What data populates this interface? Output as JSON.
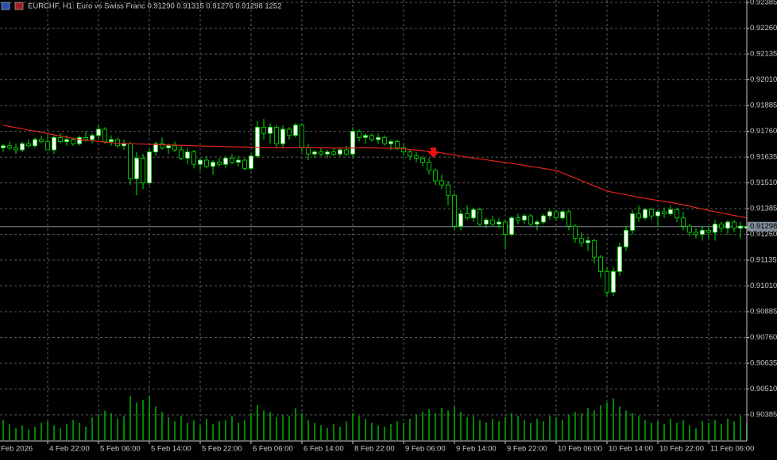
{
  "chart_data": {
    "type": "candlestick",
    "header": "EURCHF, H1:  Euro vs Swiss Franc  0.91290 0.91315 0.91276 0.91298  1252",
    "ylim": [
      0.90262,
      0.92397
    ],
    "yticks": [
      0.92385,
      {
        "value": 0.9226,
        "label": "0.92260"
      },
      0.92135,
      {
        "value": 0.9201,
        "label": "0.92010"
      },
      0.91885,
      {
        "value": 0.9176,
        "label": "0.91760"
      },
      0.91635,
      {
        "value": 0.9151,
        "label": "0.91510"
      },
      0.91385,
      {
        "value": 0.9126,
        "label": "0.91260"
      },
      0.91135,
      {
        "value": 0.9101,
        "label": "0.91010"
      },
      0.90885,
      {
        "value": 0.9076,
        "label": "0.90760"
      },
      0.90635,
      {
        "value": 0.9051,
        "label": "0.90510"
      },
      0.90385
    ],
    "grid": true,
    "colors": {
      "up": "#ffffff",
      "down": "#000000",
      "wick": "#00e600",
      "price_line": "#7f8c99"
    },
    "xlabels": [
      "Feb 2026",
      "4 Feb 22:00",
      "5 Feb 06:00",
      "5 Feb 14:00",
      "5 Feb 22:00",
      "6 Feb 06:00",
      "6 Feb 14:00",
      "8 Feb 22:00",
      "9 Feb 06:00",
      "9 Feb 14:00",
      "9 Feb 22:00",
      "10 Feb 06:00",
      "10 Feb 14:00",
      "10 Feb 22:00",
      "11 Feb 06:00"
    ],
    "ohlc": [
      [
        0.9168,
        0.917,
        0.9166,
        0.9169
      ],
      [
        0.9169,
        0.9171,
        0.9167,
        0.9168
      ],
      [
        0.9168,
        0.917,
        0.9165,
        0.9167
      ],
      [
        0.9167,
        0.9171,
        0.9166,
        0.917
      ],
      [
        0.917,
        0.9172,
        0.9168,
        0.9169
      ],
      [
        0.9169,
        0.9173,
        0.9168,
        0.9172
      ],
      [
        0.9172,
        0.9174,
        0.917,
        0.9171
      ],
      [
        0.9171,
        0.9175,
        0.9169,
        0.9167
      ],
      [
        0.9167,
        0.9174,
        0.9165,
        0.9173
      ],
      [
        0.9173,
        0.9175,
        0.917,
        0.9171
      ],
      [
        0.9171,
        0.9174,
        0.9169,
        0.9172
      ],
      [
        0.9172,
        0.9173,
        0.9169,
        0.917
      ],
      [
        0.917,
        0.9174,
        0.9169,
        0.9173
      ],
      [
        0.9173,
        0.9176,
        0.9171,
        0.9172
      ],
      [
        0.9172,
        0.9175,
        0.917,
        0.9174
      ],
      [
        0.9174,
        0.9179,
        0.9172,
        0.9177
      ],
      [
        0.9177,
        0.9178,
        0.917,
        0.9171
      ],
      [
        0.9171,
        0.9174,
        0.9169,
        0.9172
      ],
      [
        0.9172,
        0.9173,
        0.9168,
        0.9169
      ],
      [
        0.9169,
        0.9172,
        0.9167,
        0.917
      ],
      [
        0.917,
        0.9171,
        0.915,
        0.9153
      ],
      [
        0.9153,
        0.9166,
        0.9145,
        0.9163
      ],
      [
        0.9163,
        0.9165,
        0.9148,
        0.9151
      ],
      [
        0.9151,
        0.9168,
        0.915,
        0.9166
      ],
      [
        0.9166,
        0.9171,
        0.9164,
        0.917
      ],
      [
        0.917,
        0.9173,
        0.9167,
        0.9168
      ],
      [
        0.9168,
        0.917,
        0.9165,
        0.9169
      ],
      [
        0.9169,
        0.9171,
        0.9166,
        0.9167
      ],
      [
        0.9167,
        0.9169,
        0.9162,
        0.9163
      ],
      [
        0.9163,
        0.9168,
        0.916,
        0.9166
      ],
      [
        0.9166,
        0.9167,
        0.9158,
        0.916
      ],
      [
        0.916,
        0.9163,
        0.9157,
        0.9162
      ],
      [
        0.9162,
        0.9164,
        0.9158,
        0.9159
      ],
      [
        0.9159,
        0.9162,
        0.9155,
        0.9161
      ],
      [
        0.9161,
        0.9163,
        0.9159,
        0.916
      ],
      [
        0.916,
        0.9164,
        0.9158,
        0.9163
      ],
      [
        0.9163,
        0.9165,
        0.916,
        0.9161
      ],
      [
        0.9161,
        0.9164,
        0.9159,
        0.9162
      ],
      [
        0.9162,
        0.9163,
        0.9157,
        0.9158
      ],
      [
        0.9158,
        0.9165,
        0.9157,
        0.9164
      ],
      [
        0.9164,
        0.9181,
        0.9163,
        0.9178
      ],
      [
        0.9178,
        0.9182,
        0.9172,
        0.9175
      ],
      [
        0.9175,
        0.918,
        0.917,
        0.9178
      ],
      [
        0.9178,
        0.9179,
        0.9168,
        0.917
      ],
      [
        0.917,
        0.9179,
        0.9168,
        0.9177
      ],
      [
        0.9177,
        0.9178,
        0.9172,
        0.9174
      ],
      [
        0.9174,
        0.918,
        0.9173,
        0.9179
      ],
      [
        0.9179,
        0.918,
        0.9166,
        0.9168
      ],
      [
        0.9168,
        0.917,
        0.9162,
        0.9165
      ],
      [
        0.9165,
        0.9167,
        0.9163,
        0.9166
      ],
      [
        0.9166,
        0.9168,
        0.9164,
        0.9165
      ],
      [
        0.9165,
        0.9167,
        0.9163,
        0.9166
      ],
      [
        0.9166,
        0.9168,
        0.9164,
        0.9165
      ],
      [
        0.9165,
        0.9168,
        0.9164,
        0.9167
      ],
      [
        0.9167,
        0.9169,
        0.9164,
        0.9165
      ],
      [
        0.9165,
        0.9178,
        0.9163,
        0.9176
      ],
      [
        0.9176,
        0.9177,
        0.9171,
        0.9173
      ],
      [
        0.9173,
        0.9175,
        0.917,
        0.9174
      ],
      [
        0.9174,
        0.9175,
        0.9171,
        0.9172
      ],
      [
        0.9172,
        0.9175,
        0.917,
        0.9173
      ],
      [
        0.9173,
        0.9174,
        0.9169,
        0.917
      ],
      [
        0.917,
        0.9172,
        0.9167,
        0.9171
      ],
      [
        0.9171,
        0.9172,
        0.9167,
        0.9168
      ],
      [
        0.9168,
        0.917,
        0.9164,
        0.9166
      ],
      [
        0.9166,
        0.9167,
        0.9162,
        0.9164
      ],
      [
        0.9164,
        0.9166,
        0.9161,
        0.9163
      ],
      [
        0.9163,
        0.9164,
        0.9159,
        0.9161
      ],
      [
        0.9161,
        0.9163,
        0.9155,
        0.9157
      ],
      [
        0.9157,
        0.9158,
        0.915,
        0.9152
      ],
      [
        0.9152,
        0.9155,
        0.9148,
        0.915
      ],
      [
        0.915,
        0.9152,
        0.914,
        0.9145
      ],
      [
        0.9145,
        0.9146,
        0.9128,
        0.913
      ],
      [
        0.913,
        0.9138,
        0.9128,
        0.9136
      ],
      [
        0.9136,
        0.914,
        0.9133,
        0.9134
      ],
      [
        0.9134,
        0.9139,
        0.9132,
        0.9138
      ],
      [
        0.9138,
        0.9139,
        0.913,
        0.9131
      ],
      [
        0.9131,
        0.9134,
        0.9129,
        0.9133
      ],
      [
        0.9133,
        0.9135,
        0.913,
        0.9131
      ],
      [
        0.9131,
        0.9134,
        0.9129,
        0.9132
      ],
      [
        0.9132,
        0.9133,
        0.9119,
        0.9126
      ],
      [
        0.9126,
        0.9135,
        0.9125,
        0.9134
      ],
      [
        0.9134,
        0.9136,
        0.9131,
        0.9133
      ],
      [
        0.9133,
        0.9136,
        0.9131,
        0.9135
      ],
      [
        0.9135,
        0.9136,
        0.913,
        0.9131
      ],
      [
        0.9131,
        0.9133,
        0.9128,
        0.9132
      ],
      [
        0.9132,
        0.9136,
        0.9131,
        0.9135
      ],
      [
        0.9135,
        0.9138,
        0.9133,
        0.9137
      ],
      [
        0.9137,
        0.9138,
        0.9133,
        0.9134
      ],
      [
        0.9134,
        0.9138,
        0.9133,
        0.9137
      ],
      [
        0.9137,
        0.9138,
        0.9128,
        0.913
      ],
      [
        0.913,
        0.9131,
        0.9122,
        0.9124
      ],
      [
        0.9124,
        0.9127,
        0.912,
        0.9122
      ],
      [
        0.9122,
        0.9125,
        0.9118,
        0.9123
      ],
      [
        0.9123,
        0.9124,
        0.9112,
        0.9115
      ],
      [
        0.9115,
        0.9116,
        0.9105,
        0.9108
      ],
      [
        0.9108,
        0.911,
        0.9096,
        0.9098
      ],
      [
        0.9098,
        0.911,
        0.9096,
        0.9108
      ],
      [
        0.9108,
        0.9122,
        0.9106,
        0.912
      ],
      [
        0.912,
        0.913,
        0.9118,
        0.9128
      ],
      [
        0.9128,
        0.9138,
        0.9126,
        0.9136
      ],
      [
        0.9136,
        0.914,
        0.9132,
        0.9134
      ],
      [
        0.9134,
        0.9139,
        0.9133,
        0.9138
      ],
      [
        0.9138,
        0.9139,
        0.9133,
        0.9135
      ],
      [
        0.9135,
        0.9138,
        0.913,
        0.9137
      ],
      [
        0.9137,
        0.9139,
        0.9134,
        0.9136
      ],
      [
        0.9136,
        0.914,
        0.9135,
        0.9138
      ],
      [
        0.9138,
        0.9139,
        0.9132,
        0.9134
      ],
      [
        0.9134,
        0.9137,
        0.9128,
        0.913
      ],
      [
        0.913,
        0.9131,
        0.9125,
        0.9127
      ],
      [
        0.9127,
        0.9129,
        0.9124,
        0.9126
      ],
      [
        0.9126,
        0.913,
        0.9123,
        0.9128
      ],
      [
        0.9128,
        0.913,
        0.9124,
        0.9127
      ],
      [
        0.9127,
        0.9133,
        0.9123,
        0.9131
      ],
      [
        0.9131,
        0.9132,
        0.9127,
        0.9129
      ],
      [
        0.9129,
        0.9133,
        0.9126,
        0.9132
      ],
      [
        0.9132,
        0.9133,
        0.9127,
        0.9129
      ],
      [
        0.9129,
        0.9132,
        0.9124,
        0.913
      ],
      [
        0.9129,
        0.91315,
        0.91276,
        0.91298
      ]
    ],
    "ma": {
      "color": "#e3231c",
      "values": [
        0.9179,
        0.91784,
        0.91778,
        0.91772,
        0.91766,
        0.91761,
        0.91755,
        0.91749,
        0.91743,
        0.91737,
        0.91732,
        0.91726,
        0.9172,
        0.91717,
        0.91714,
        0.91711,
        0.91708,
        0.91705,
        0.91702,
        0.91701,
        0.917,
        0.91699,
        0.91698,
        0.91697,
        0.91696,
        0.91695,
        0.91694,
        0.91693,
        0.91692,
        0.91691,
        0.9169,
        0.91689,
        0.91688,
        0.91688,
        0.91687,
        0.91686,
        0.91685,
        0.91684,
        0.91684,
        0.91683,
        0.91682,
        0.91681,
        0.91681,
        0.9168,
        0.9168,
        0.9168,
        0.91681,
        0.91681,
        0.91681,
        0.9168,
        0.9168,
        0.9168,
        0.91679,
        0.91679,
        0.91679,
        0.91679,
        0.9168,
        0.9168,
        0.9168,
        0.91679,
        0.91679,
        0.91678,
        0.91677,
        0.91675,
        0.91672,
        0.91669,
        0.91666,
        0.91663,
        0.9166,
        0.91655,
        0.9165,
        0.91645,
        0.9164,
        0.91635,
        0.9163,
        0.91626,
        0.91622,
        0.91617,
        0.91613,
        0.91609,
        0.91604,
        0.916,
        0.91595,
        0.9159,
        0.91585,
        0.9158,
        0.91575,
        0.9157,
        0.91558,
        0.91545,
        0.91533,
        0.9152,
        0.91508,
        0.91495,
        0.91483,
        0.9147,
        0.91464,
        0.91458,
        0.91452,
        0.91446,
        0.9144,
        0.91435,
        0.9143,
        0.91425,
        0.9142,
        0.91415,
        0.9141,
        0.91403,
        0.91397,
        0.9139,
        0.91383,
        0.91377,
        0.9137,
        0.91364,
        0.91358,
        0.91352,
        0.91346,
        0.9134
      ]
    },
    "volume": {
      "color": "#00b400",
      "values": [
        1500,
        1200,
        900,
        1100,
        800,
        1000,
        1300,
        1400,
        1100,
        900,
        1200,
        1500,
        1300,
        1000,
        1700,
        1900,
        2200,
        2000,
        1600,
        1800,
        3300,
        2800,
        3000,
        3300,
        2500,
        2100,
        1700,
        1400,
        1800,
        1300,
        1500,
        1100,
        1600,
        1200,
        1400,
        1500,
        1800,
        1300,
        1500,
        2000,
        2600,
        2200,
        2100,
        1700,
        1900,
        1800,
        2400,
        2000,
        1500,
        1300,
        1100,
        900,
        1200,
        1000,
        1400,
        2000,
        1800,
        1600,
        1300,
        1100,
        1000,
        1200,
        1400,
        1300,
        1600,
        1900,
        2100,
        2300,
        2000,
        2400,
        2200,
        2500,
        2100,
        1700,
        1800,
        1500,
        1300,
        1600,
        1400,
        1700,
        2000,
        1800,
        1500,
        1300,
        1600,
        1400,
        1800,
        1700,
        1500,
        1900,
        2100,
        2000,
        2400,
        2200,
        2600,
        2800,
        3100,
        2500,
        2200,
        2000,
        1800,
        1500,
        1300,
        1400,
        1200,
        1600,
        1300,
        1500,
        1100,
        900,
        1400,
        1300,
        1500,
        1200,
        1600,
        1400,
        1800,
        1252
      ]
    }
  }
}
